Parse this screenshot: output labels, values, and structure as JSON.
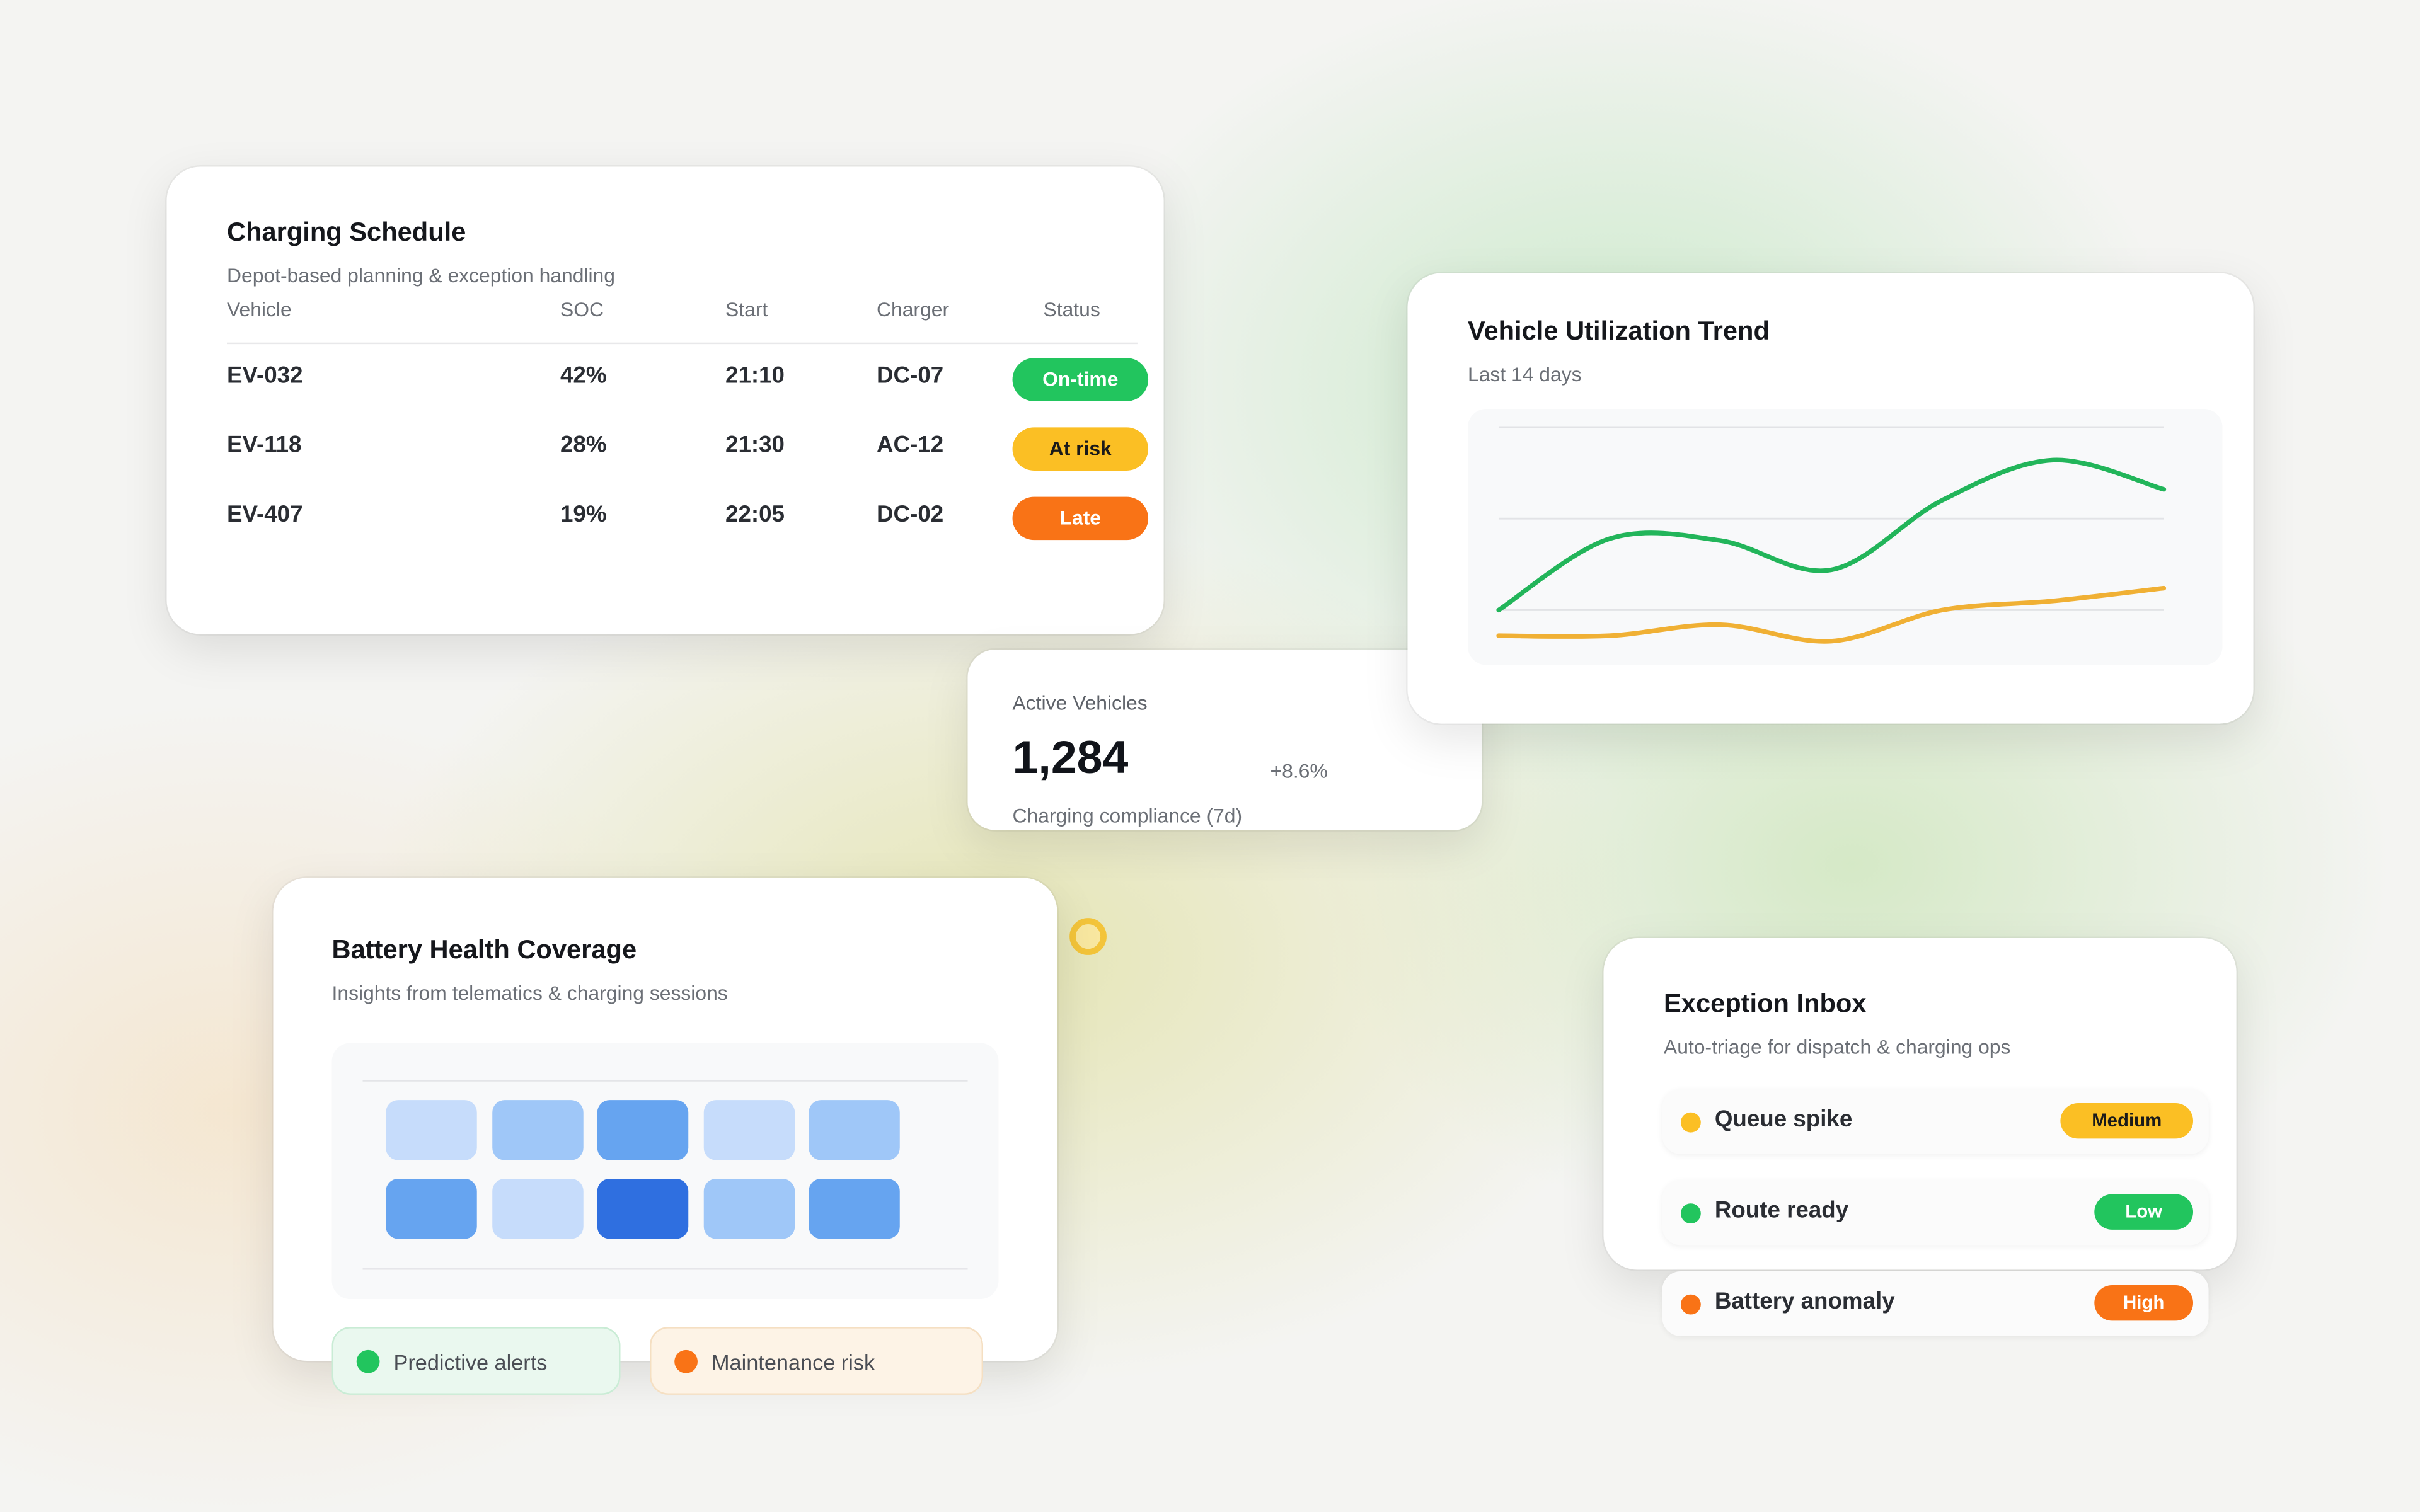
{
  "schedule": {
    "title": "Charging Schedule",
    "subtitle": "Depot-based planning & exception handling",
    "columns": [
      "Vehicle",
      "SOC",
      "Start",
      "Charger",
      "Status"
    ],
    "rows": [
      {
        "vehicle": "EV-032",
        "soc": "42%",
        "start": "21:10",
        "charger": "DC-07",
        "status": "On-time",
        "color": "#22c55e"
      },
      {
        "vehicle": "EV-118",
        "soc": "28%",
        "start": "21:30",
        "charger": "AC-12",
        "status": "At risk",
        "color": "#fbbf24"
      },
      {
        "vehicle": "EV-407",
        "soc": "19%",
        "start": "22:05",
        "charger": "DC-02",
        "status": "Late",
        "color": "#f97316"
      }
    ]
  },
  "trend": {
    "title": "Vehicle Utilization Trend",
    "subtitle": "Last 14 days"
  },
  "chart_data": {
    "type": "line",
    "grid": true,
    "ylim": [
      -30,
      110
    ],
    "series": [
      {
        "color": "#22b55a",
        "values": [
          0,
          39,
          38,
          22,
          60,
          82,
          66
        ]
      },
      {
        "color": "#f0b034",
        "values": [
          -14,
          -14,
          -8,
          -17,
          0,
          5,
          12
        ]
      }
    ]
  },
  "kpi": {
    "label": "Active Vehicles",
    "value": "1,284",
    "change": "+8.6%",
    "caption": "Charging compliance (7d)"
  },
  "battery": {
    "title": "Battery Health Coverage",
    "subtitle": "Insights from telematics & charging sessions",
    "cells": [
      "#c6dcfb",
      "#9fc7f8",
      "#66a4f0",
      "#c6dcfb",
      "#9fc7f8",
      "#66a4f0",
      "#c6dcfb",
      "#2f6fe0",
      "#9fc7f8",
      "#66a4f0"
    ],
    "legend": [
      {
        "label": "Predictive alerts",
        "color": "#22c55e"
      },
      {
        "label": "Maintenance risk",
        "color": "#f97316"
      }
    ]
  },
  "inbox": {
    "title": "Exception Inbox",
    "subtitle": "Auto-triage for dispatch & charging ops",
    "items": [
      {
        "label": "Queue spike",
        "priority": "Medium",
        "color": "#fbbf24"
      },
      {
        "label": "Route ready",
        "priority": "Low",
        "color": "#22c55e"
      },
      {
        "label": "Battery anomaly",
        "priority": "High",
        "color": "#f97316"
      }
    ]
  }
}
